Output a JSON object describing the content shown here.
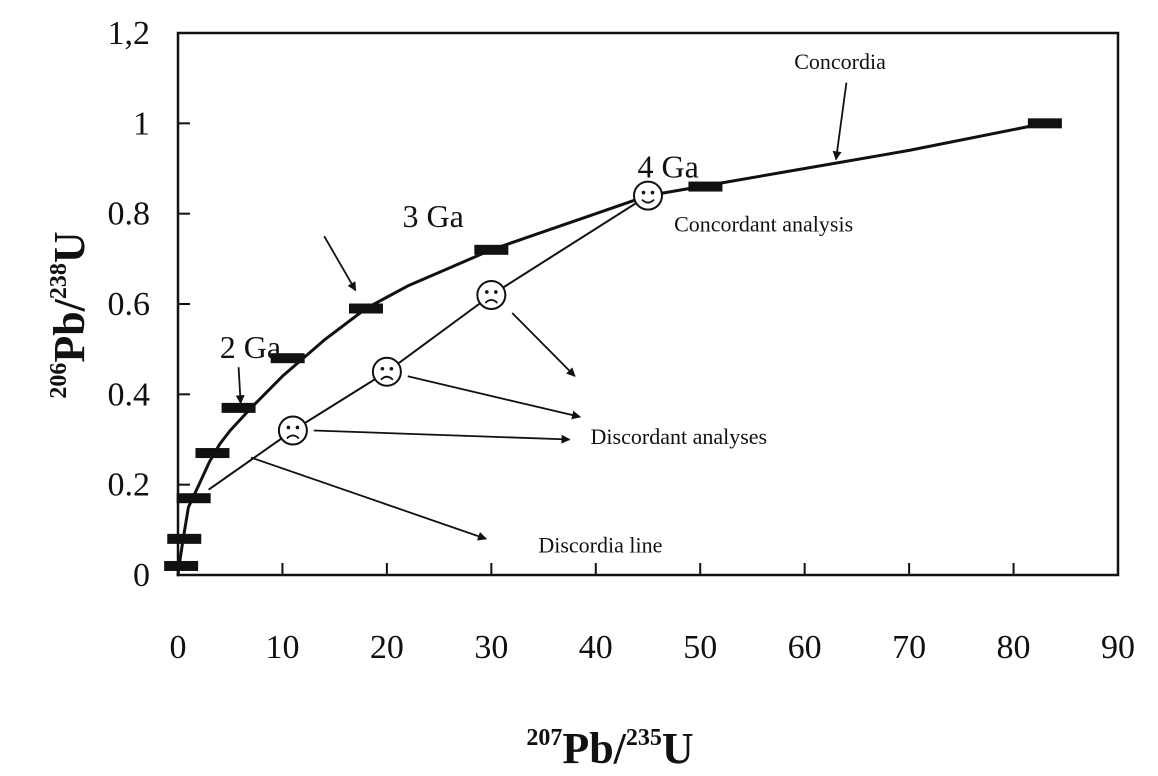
{
  "chart_data": {
    "type": "line",
    "title": "",
    "xlabel": {
      "sup": "207",
      "base": "Pb/",
      "sup2": "235",
      "tail": "U"
    },
    "ylabel": {
      "sup": "206",
      "base": "Pb/",
      "sup2": "238",
      "tail": "U"
    },
    "xlim": [
      0,
      90
    ],
    "ylim": [
      0,
      1.2
    ],
    "x_ticks": [
      "0",
      "10",
      "20",
      "30",
      "40",
      "50",
      "60",
      "70",
      "80",
      "90"
    ],
    "y_ticks": [
      "0",
      "0.2",
      "0.4",
      "0.6",
      "0.8",
      "1",
      "1,2"
    ],
    "grid": false,
    "series": [
      {
        "name": "Concordia",
        "x": [
          0,
          0.1,
          0.5,
          1,
          2,
          3,
          4,
          5,
          7,
          10,
          14,
          18,
          22,
          26,
          30,
          35,
          40,
          45,
          50,
          60,
          70,
          83
        ],
        "y": [
          0,
          0.02,
          0.08,
          0.15,
          0.2,
          0.25,
          0.29,
          0.32,
          0.37,
          0.44,
          0.52,
          0.59,
          0.64,
          0.68,
          0.72,
          0.76,
          0.8,
          0.84,
          0.86,
          0.9,
          0.94,
          1.0
        ]
      },
      {
        "name": "Discordia line",
        "x": [
          3,
          11,
          20,
          30,
          45
        ],
        "y": [
          0.19,
          0.32,
          0.45,
          0.62,
          0.84
        ]
      }
    ],
    "age_markers": [
      {
        "x": 0.3,
        "y": 0.02
      },
      {
        "x": 0.6,
        "y": 0.08
      },
      {
        "x": 1.5,
        "y": 0.17
      },
      {
        "x": 3.3,
        "y": 0.27
      },
      {
        "x": 5.8,
        "y": 0.37
      },
      {
        "x": 10.5,
        "y": 0.48
      },
      {
        "x": 18,
        "y": 0.59
      },
      {
        "x": 30,
        "y": 0.72
      },
      {
        "x": 50.5,
        "y": 0.86
      },
      {
        "x": 83,
        "y": 1.0
      }
    ],
    "concordant_points": [
      {
        "x": 45,
        "y": 0.84
      }
    ],
    "discordant_points": [
      {
        "x": 11,
        "y": 0.32
      },
      {
        "x": 20,
        "y": 0.45
      },
      {
        "x": 30,
        "y": 0.62
      }
    ],
    "annotations": [
      {
        "text": "Concordia",
        "x": 59,
        "y": 1.12,
        "size": "small",
        "arrow": [
          [
            64,
            1.09
          ],
          [
            63,
            0.92
          ]
        ]
      },
      {
        "text": "4 Ga",
        "x": 44,
        "y": 0.88,
        "size": "big"
      },
      {
        "text": "3 Ga",
        "x": 21.5,
        "y": 0.77,
        "size": "big",
        "arrow": [
          [
            14,
            0.75
          ],
          [
            17,
            0.63
          ]
        ]
      },
      {
        "text": "2 Ga",
        "x": 4,
        "y": 0.48,
        "size": "big",
        "arrow": [
          [
            5.8,
            0.46
          ],
          [
            6,
            0.38
          ]
        ]
      },
      {
        "text": "Concordant analysis",
        "x": 47.5,
        "y": 0.76,
        "size": "small"
      },
      {
        "text": "Discordant analyses",
        "x": 39.5,
        "y": 0.29,
        "size": "small",
        "arrows": [
          [
            [
              32,
              0.58
            ],
            [
              38,
              0.44
            ]
          ],
          [
            [
              22,
              0.44
            ],
            [
              38.5,
              0.35
            ]
          ],
          [
            [
              13,
              0.32
            ],
            [
              37.5,
              0.3
            ]
          ]
        ]
      },
      {
        "text": "Discordia line",
        "x": 34.5,
        "y": 0.05,
        "size": "small",
        "arrow": [
          [
            7,
            0.26
          ],
          [
            29.5,
            0.08
          ]
        ]
      }
    ]
  }
}
